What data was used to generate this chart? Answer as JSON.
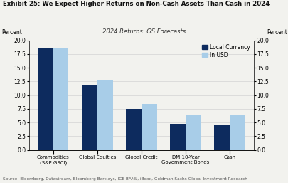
{
  "title": "Exhibit 25: We Expect Higher Returns on Non-Cash Assets Than Cash in 2024",
  "subtitle": "2024 Returns: GS Forecasts",
  "ylabel_left": "Percent",
  "ylabel_right": "Percent",
  "source": "Source: Bloomberg, Datastream, Bloomberg-Barclays, ICE-BAML, iBoxx, Goldman Sachs Global Investment Research",
  "categories": [
    "Commodities\n(S&P GSCI)",
    "Global Equities",
    "Global Credit",
    "DM 10-Year\nGovernment Bonds",
    "Cash"
  ],
  "local_currency": [
    18.5,
    11.8,
    7.5,
    4.8,
    4.6
  ],
  "in_usd": [
    18.5,
    12.8,
    8.4,
    6.3,
    6.3
  ],
  "color_local": "#0d2b5e",
  "color_usd": "#a8cde8",
  "ylim": [
    0,
    20.0
  ],
  "yticks": [
    0.0,
    2.5,
    5.0,
    7.5,
    10.0,
    12.5,
    15.0,
    17.5,
    20.0
  ],
  "legend_local": "Local Currency",
  "legend_usd": "In USD",
  "bar_width": 0.35,
  "background_color": "#f2f2ee"
}
